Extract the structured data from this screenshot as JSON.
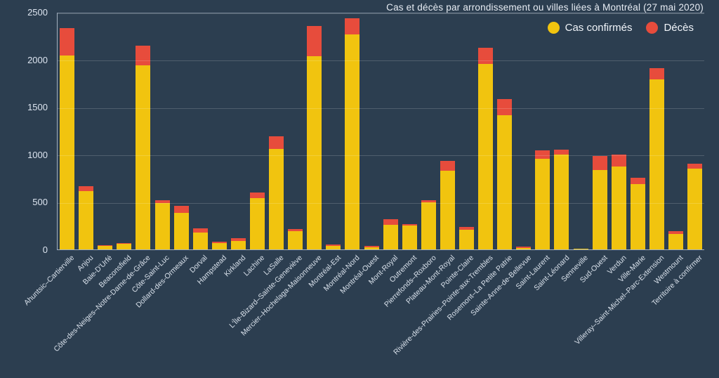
{
  "title": "Cas et décès par arrondissement ou villes liées à Montréal (27 mai 2020)",
  "colors": {
    "background": "#2c3e50",
    "cases": "#f1c40f",
    "deaths": "#e74c3c",
    "grid": "rgba(255,255,255,0.17)",
    "axis_text": "#dce4ef"
  },
  "legend": {
    "items": [
      {
        "label": "Cas confirmés",
        "color": "#f1c40f"
      },
      {
        "label": "Décès",
        "color": "#e74c3c"
      }
    ]
  },
  "y_axis": {
    "ticks": [
      0,
      500,
      1000,
      1500,
      2000,
      2500
    ]
  },
  "chart_data": {
    "type": "bar",
    "stacked": true,
    "title": "Cas et décès par arrondissement ou villes liées à Montréal (27 mai 2020)",
    "xlabel": "",
    "ylabel": "",
    "ylim": [
      0,
      2500
    ],
    "grid": true,
    "legend_position": "top-right",
    "categories": [
      "Ahuntsic–Cartierville",
      "Anjou",
      "Baie-D'Urfé",
      "Beaconsfield",
      "Côte-des-Neiges–Notre-Dame-de-Grâce",
      "Côte-Saint-Luc",
      "Dollard-des-Ormeaux",
      "Dorval",
      "Hampstead",
      "Kirkland",
      "Lachine",
      "LaSalle",
      "L'Île-Bizard–Sainte-Geneviève",
      "Mercier–Hochelaga-Maisonneuve",
      "Montréal-Est",
      "Montréal-Nord",
      "Montréal-Ouest",
      "Mont-Royal",
      "Outremont",
      "Pierrefonds–Roxboro",
      "Plateau-Mont-Royal",
      "Pointe-Claire",
      "Rivière-des-Prairies–Pointe-aux-Trembles",
      "Rosemont–La Petite Patrie",
      "Sainte-Anne-de-Bellevue",
      "Saint-Laurent",
      "Saint-Léonard",
      "Senneville",
      "Sud-Ouest",
      "Verdun",
      "Ville-Marie",
      "Villeray–Saint-Michel–Parc-Extension",
      "Westmount",
      "Territoire à confirmer"
    ],
    "series": [
      {
        "name": "Cas confirmés",
        "color": "#f1c40f",
        "values": [
          2040,
          615,
          40,
          62,
          1935,
          485,
          385,
          175,
          68,
          90,
          540,
          1055,
          190,
          2035,
          40,
          2265,
          25,
          260,
          255,
          495,
          830,
          210,
          1950,
          1410,
          18,
          955,
          995,
          5,
          835,
          875,
          690,
          1790,
          160,
          850
        ]
      },
      {
        "name": "Décès",
        "color": "#e74c3c",
        "values": [
          290,
          50,
          5,
          8,
          210,
          30,
          75,
          45,
          12,
          25,
          60,
          135,
          25,
          315,
          15,
          170,
          10,
          55,
          15,
          20,
          100,
          25,
          170,
          170,
          12,
          90,
          55,
          2,
          150,
          120,
          65,
          115,
          30,
          55
        ]
      }
    ]
  }
}
